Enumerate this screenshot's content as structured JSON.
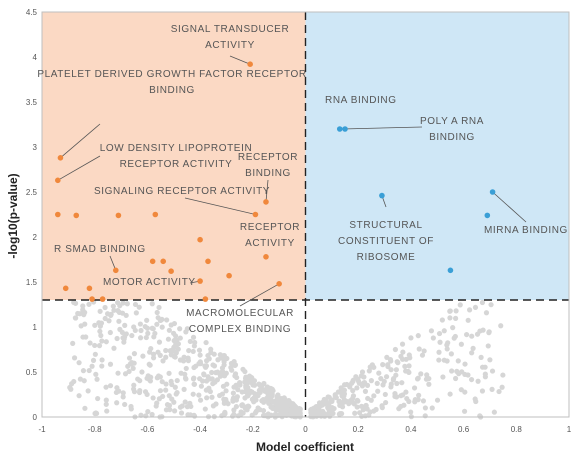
{
  "chart_data": {
    "type": "scatter",
    "xlabel": "Model coefficient",
    "ylabel": "-log10(p-value)",
    "xlim": [
      -1,
      1
    ],
    "ylim": [
      0,
      4.5
    ],
    "x_ticks": [
      "-1",
      "-0.8",
      "-0.6",
      "-0.4",
      "-0.2",
      "0",
      "0.2",
      "0.4",
      "0.6",
      "0.8",
      "1"
    ],
    "y_ticks": [
      "0",
      "0.5",
      "1",
      "1.5",
      "2",
      "2.5",
      "3",
      "3.5",
      "4",
      "4.5"
    ],
    "significance_threshold": 1.3,
    "grid": false,
    "colors": {
      "negative_region": "#fbd9c4",
      "positive_region": "#cfe7f6",
      "negative_points": "#f0883c",
      "positive_points": "#3a9fd6",
      "background_points": "#d6d6d6",
      "annotation_text": "#555555",
      "leader_line": "#555555"
    },
    "negative_significant_points": [
      {
        "x": -0.21,
        "y": 3.92
      },
      {
        "x": -0.93,
        "y": 2.88
      },
      {
        "x": -0.94,
        "y": 2.63
      },
      {
        "x": -0.15,
        "y": 2.39
      },
      {
        "x": -0.19,
        "y": 2.25
      },
      {
        "x": -0.94,
        "y": 2.25
      },
      {
        "x": -0.87,
        "y": 2.24
      },
      {
        "x": -0.71,
        "y": 2.24
      },
      {
        "x": -0.57,
        "y": 2.25
      },
      {
        "x": -0.4,
        "y": 1.97
      },
      {
        "x": -0.15,
        "y": 1.78
      },
      {
        "x": -0.58,
        "y": 1.73
      },
      {
        "x": -0.54,
        "y": 1.73
      },
      {
        "x": -0.37,
        "y": 1.73
      },
      {
        "x": -0.72,
        "y": 1.63
      },
      {
        "x": -0.51,
        "y": 1.62
      },
      {
        "x": -0.29,
        "y": 1.57
      },
      {
        "x": -0.4,
        "y": 1.51
      },
      {
        "x": -0.1,
        "y": 1.48
      },
      {
        "x": -0.91,
        "y": 1.43
      },
      {
        "x": -0.82,
        "y": 1.43
      },
      {
        "x": -0.81,
        "y": 1.31
      },
      {
        "x": -0.77,
        "y": 1.31
      },
      {
        "x": -0.38,
        "y": 1.31
      }
    ],
    "positive_significant_points": [
      {
        "x": 0.13,
        "y": 3.2
      },
      {
        "x": 0.15,
        "y": 3.2
      },
      {
        "x": 0.71,
        "y": 2.5
      },
      {
        "x": 0.29,
        "y": 2.46
      },
      {
        "x": 0.69,
        "y": 2.24
      },
      {
        "x": 0.55,
        "y": 1.63
      }
    ],
    "annotations": [
      {
        "lines": [
          "SIGNAL TRANSDUCER",
          "ACTIVITY"
        ],
        "px": -0.21,
        "py": 3.92
      },
      {
        "lines": [
          "PLATELET DERIVED GROWTH FACTOR RECEPTOR",
          "BINDING"
        ],
        "px": -0.93,
        "py": 2.88
      },
      {
        "lines": [
          "LOW DENSITY LIPOPROTEIN",
          "RECEPTOR ACTIVITY"
        ],
        "px": -0.94,
        "py": 2.63
      },
      {
        "lines": [
          "RECEPTOR",
          "BINDING"
        ],
        "px": -0.15,
        "py": 2.39
      },
      {
        "lines": [
          "SIGNALING RECEPTOR ACTIVITY"
        ],
        "px": -0.19,
        "py": 2.25
      },
      {
        "lines": [
          "RECEPTOR",
          "ACTIVITY"
        ],
        "px": null,
        "py": null
      },
      {
        "lines": [
          "R SMAD BINDING"
        ],
        "px": -0.72,
        "py": 1.63
      },
      {
        "lines": [
          "MOTOR ACTIVITY"
        ],
        "px": -0.4,
        "py": 1.51
      },
      {
        "lines": [
          "MACROMOLECULAR",
          "COMPLEX BINDING"
        ],
        "px": -0.1,
        "py": 1.48
      },
      {
        "lines": [
          "RNA BINDING"
        ],
        "px": null,
        "py": null
      },
      {
        "lines": [
          "POLY A RNA",
          "BINDING"
        ],
        "px": 0.14,
        "py": 3.2
      },
      {
        "lines": [
          "STRUCTURAL",
          "CONSTITUENT OF",
          "RIBOSOME"
        ],
        "px": 0.29,
        "py": 2.46
      },
      {
        "lines": [
          "MIRNA BINDING"
        ],
        "px": 0.71,
        "py": 2.5
      }
    ]
  }
}
